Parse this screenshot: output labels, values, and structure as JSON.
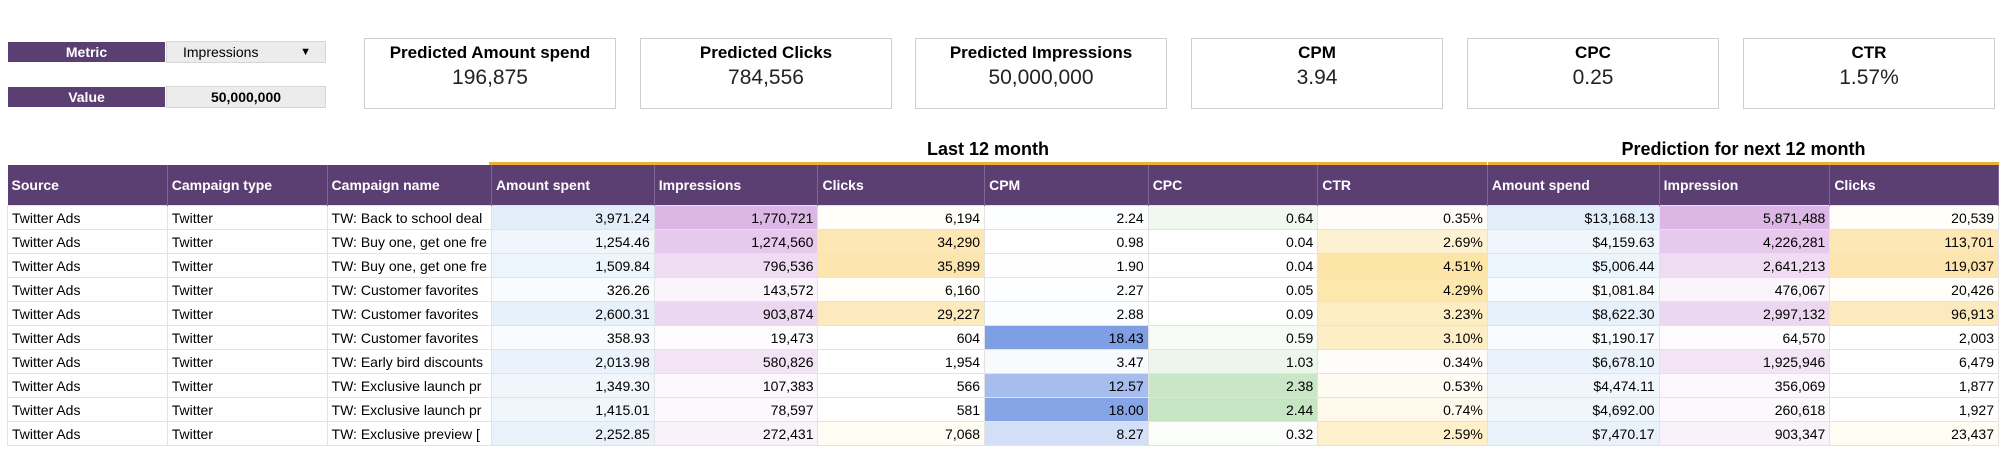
{
  "controls": {
    "metric_label": "Metric",
    "metric_value": "Impressions",
    "value_label": "Value",
    "value_value": "50,000,000"
  },
  "kpis": [
    {
      "title": "Predicted Amount spend",
      "value": "196,875"
    },
    {
      "title": "Predicted Clicks",
      "value": "784,556"
    },
    {
      "title": "Predicted Impressions",
      "value": "50,000,000"
    },
    {
      "title": "CPM",
      "value": "3.94"
    },
    {
      "title": "CPC",
      "value": "0.25"
    },
    {
      "title": "CTR",
      "value": "1.57%"
    }
  ],
  "groups": {
    "last": "Last 12 month",
    "prediction": "Prediction for next 12 month"
  },
  "colors": {
    "header_bg": "#5c3f72",
    "group_line": "#e8b23a"
  },
  "table": {
    "headers": [
      "Source",
      "Campaign type",
      "Campaign name",
      "Amount spent",
      "Impressions",
      "Clicks",
      "CPM",
      "CPC",
      "CTR",
      "Amount spend",
      "Impression",
      "Clicks"
    ],
    "rows": [
      [
        "Twitter Ads",
        "Twitter",
        "TW: Back to school deal",
        "3,971.24",
        "1,770,721",
        "6,194",
        "2.24",
        "0.64",
        "0.35%",
        "$13,168.13",
        "5,871,488",
        "20,539"
      ],
      [
        "Twitter Ads",
        "Twitter",
        "TW: Buy one, get one fre",
        "1,254.46",
        "1,274,560",
        "34,290",
        "0.98",
        "0.04",
        "2.69%",
        "$4,159.63",
        "4,226,281",
        "113,701"
      ],
      [
        "Twitter Ads",
        "Twitter",
        "TW: Buy one, get one fre",
        "1,509.84",
        "796,536",
        "35,899",
        "1.90",
        "0.04",
        "4.51%",
        "$5,006.44",
        "2,641,213",
        "119,037"
      ],
      [
        "Twitter Ads",
        "Twitter",
        "TW: Customer favorites",
        "326.26",
        "143,572",
        "6,160",
        "2.27",
        "0.05",
        "4.29%",
        "$1,081.84",
        "476,067",
        "20,426"
      ],
      [
        "Twitter Ads",
        "Twitter",
        "TW: Customer favorites",
        "2,600.31",
        "903,874",
        "29,227",
        "2.88",
        "0.09",
        "3.23%",
        "$8,622.30",
        "2,997,132",
        "96,913"
      ],
      [
        "Twitter Ads",
        "Twitter",
        "TW: Customer favorites",
        "358.93",
        "19,473",
        "604",
        "18.43",
        "0.59",
        "3.10%",
        "$1,190.17",
        "64,570",
        "2,003"
      ],
      [
        "Twitter Ads",
        "Twitter",
        "TW: Early bird discounts",
        "2,013.98",
        "580,826",
        "1,954",
        "3.47",
        "1.03",
        "0.34%",
        "$6,678.10",
        "1,925,946",
        "6,479"
      ],
      [
        "Twitter Ads",
        "Twitter",
        "TW: Exclusive launch pr",
        "1,349.30",
        "107,383",
        "566",
        "12.57",
        "2.38",
        "0.53%",
        "$4,474.11",
        "356,069",
        "1,877"
      ],
      [
        "Twitter Ads",
        "Twitter",
        "TW: Exclusive launch pr",
        "1,415.01",
        "78,597",
        "581",
        "18.00",
        "2.44",
        "0.74%",
        "$4,692.00",
        "260,618",
        "1,927"
      ],
      [
        "Twitter Ads",
        "Twitter",
        "TW: Exclusive preview [",
        "2,252.85",
        "272,431",
        "7,068",
        "8.27",
        "0.32",
        "2.59%",
        "$7,470.17",
        "903,347",
        "23,437"
      ]
    ],
    "cell_colors": [
      [
        null,
        null,
        null,
        "#e2eef9",
        "#dcb6e4",
        "#fffef9",
        "#fdfeff",
        "#f0f8ef",
        "#fffdf9",
        "#e2eef9",
        "#dcb6e4",
        "#fffef9"
      ],
      [
        null,
        null,
        null,
        "#f0f6fc",
        "#e6c9ec",
        "#fde7b4",
        "#ffffff",
        "#ffffff",
        "#fcf1d1",
        "#f0f6fc",
        "#e6c9ec",
        "#fde7b4"
      ],
      [
        null,
        null,
        null,
        "#edf5fc",
        "#efdcf2",
        "#fde5af",
        "#fefeff",
        "#ffffff",
        "#fce5a7",
        "#edf5fc",
        "#efdcf2",
        "#fde5af"
      ],
      [
        null,
        null,
        null,
        "#f9fcfe",
        "#faf5fb",
        "#fffef9",
        "#fdfeff",
        "#ffffff",
        "#fce7ad",
        "#f9fcfe",
        "#faf5fb",
        "#fffef9"
      ],
      [
        null,
        null,
        null,
        "#e7f1fb",
        "#ecd7f0",
        "#fde9be",
        "#fbfdff",
        "#ffffff",
        "#fdedc3",
        "#e7f1fb",
        "#ecd7f0",
        "#fde9be"
      ],
      [
        null,
        null,
        null,
        "#f9fbfe",
        "#fdfbfd",
        "#ffffff",
        "#7f9fe5",
        "#f6fbf6",
        "#fdeec6",
        "#f9fbfe",
        "#fdfbfd",
        "#ffffff"
      ],
      [
        null,
        null,
        null,
        "#eaf3fc",
        "#f2e4f4",
        "#ffffff",
        "#f8fafe",
        "#ecf6eb",
        "#fffdf9",
        "#eaf3fc",
        "#f2e4f4",
        "#ffffff"
      ],
      [
        null,
        null,
        null,
        "#f0f6fc",
        "#fbf7fc",
        "#ffffff",
        "#a6bdee",
        "#c9e6c7",
        "#fefbf2",
        "#f0f6fc",
        "#fbf7fc",
        "#ffffff"
      ],
      [
        null,
        null,
        null,
        "#eff6fc",
        "#fcf9fc",
        "#ffffff",
        "#86a5e7",
        "#c6e5c3",
        "#fef9eb",
        "#eff6fc",
        "#fcf9fc",
        "#ffffff"
      ],
      [
        null,
        null,
        null,
        "#e9f2fb",
        "#f9f2fa",
        "#fffcf4",
        "#d3def7",
        "#fbfdfb",
        "#fdf0ca",
        "#e9f2fb",
        "#f9f2fa",
        "#fffcf4"
      ]
    ]
  }
}
